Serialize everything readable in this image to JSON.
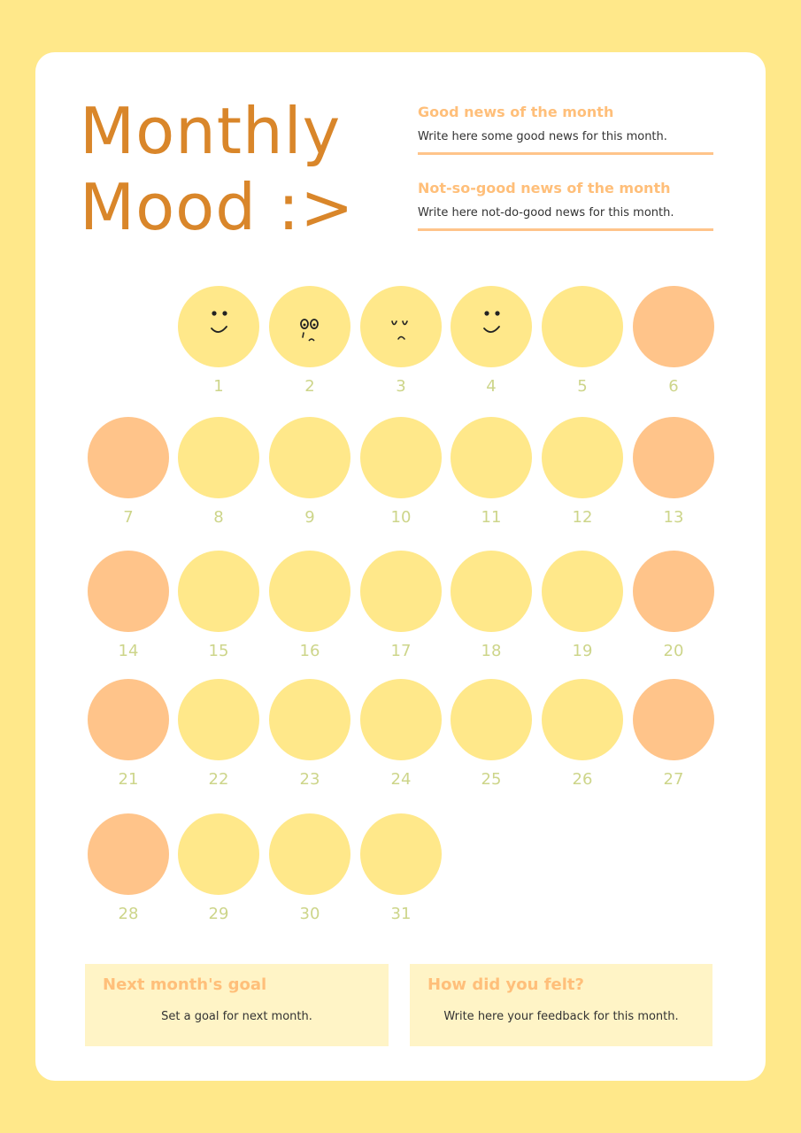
{
  "title": {
    "line1": "Monthly",
    "line2": "Mood :>"
  },
  "good_news": {
    "heading": "Good news of the month",
    "text": "Write here some good news for this month."
  },
  "bad_news": {
    "heading": "Not-so-good news of the month",
    "text": "Write here not-do-good news for this month."
  },
  "days": [
    {
      "n": "1",
      "mood": "yellow",
      "face": "happy"
    },
    {
      "n": "2",
      "mood": "yellow",
      "face": "crying"
    },
    {
      "n": "3",
      "mood": "yellow",
      "face": "sad"
    },
    {
      "n": "4",
      "mood": "yellow",
      "face": "happy"
    },
    {
      "n": "5",
      "mood": "yellow",
      "face": ""
    },
    {
      "n": "6",
      "mood": "orange",
      "face": ""
    },
    {
      "n": "7",
      "mood": "orange",
      "face": ""
    },
    {
      "n": "8",
      "mood": "yellow",
      "face": ""
    },
    {
      "n": "9",
      "mood": "yellow",
      "face": ""
    },
    {
      "n": "10",
      "mood": "yellow",
      "face": ""
    },
    {
      "n": "11",
      "mood": "yellow",
      "face": ""
    },
    {
      "n": "12",
      "mood": "yellow",
      "face": ""
    },
    {
      "n": "13",
      "mood": "orange",
      "face": ""
    },
    {
      "n": "14",
      "mood": "orange",
      "face": ""
    },
    {
      "n": "15",
      "mood": "yellow",
      "face": ""
    },
    {
      "n": "16",
      "mood": "yellow",
      "face": ""
    },
    {
      "n": "17",
      "mood": "yellow",
      "face": ""
    },
    {
      "n": "18",
      "mood": "yellow",
      "face": ""
    },
    {
      "n": "19",
      "mood": "yellow",
      "face": ""
    },
    {
      "n": "20",
      "mood": "orange",
      "face": ""
    },
    {
      "n": "21",
      "mood": "orange",
      "face": ""
    },
    {
      "n": "22",
      "mood": "yellow",
      "face": ""
    },
    {
      "n": "23",
      "mood": "yellow",
      "face": ""
    },
    {
      "n": "24",
      "mood": "yellow",
      "face": ""
    },
    {
      "n": "25",
      "mood": "yellow",
      "face": ""
    },
    {
      "n": "26",
      "mood": "yellow",
      "face": ""
    },
    {
      "n": "27",
      "mood": "orange",
      "face": ""
    },
    {
      "n": "28",
      "mood": "orange",
      "face": ""
    },
    {
      "n": "29",
      "mood": "yellow",
      "face": ""
    },
    {
      "n": "30",
      "mood": "yellow",
      "face": ""
    },
    {
      "n": "31",
      "mood": "yellow",
      "face": ""
    }
  ],
  "next_goal": {
    "heading": "Next month's goal",
    "text": "Set a goal for next month."
  },
  "feedback": {
    "heading": "How did you felt?",
    "text": "Write here your feedback for this month."
  },
  "colors": {
    "background": "#FFE88A",
    "title": "#D9862A",
    "yellow_mood": "#FFE88A",
    "orange_mood": "#FFC48A",
    "day_number": "#CDD58A",
    "heading": "#FFBF7A"
  }
}
